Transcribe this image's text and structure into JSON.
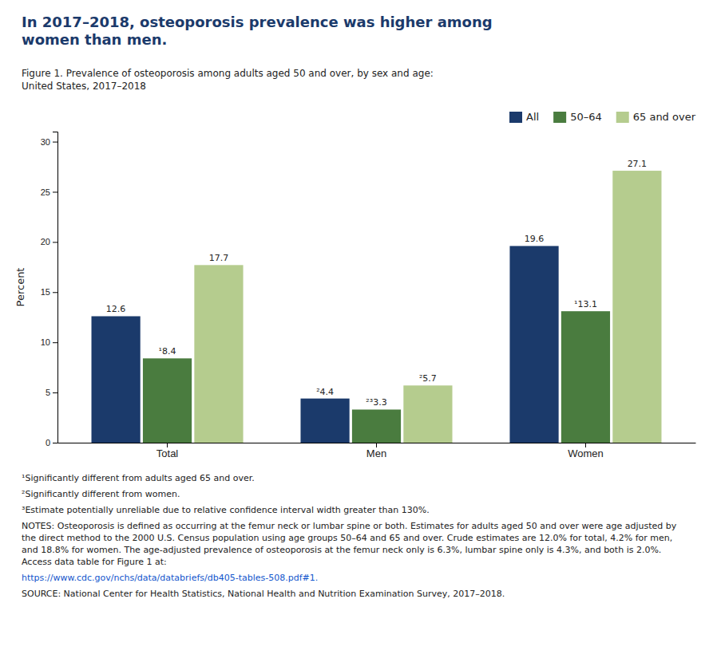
{
  "chart_data": {
    "type": "bar",
    "title": [
      "In 2017–2018, osteoporosis prevalence was higher among",
      "women than men."
    ],
    "subtitle": [
      "Figure 1. Prevalence of osteoporosis among adults aged 50 and over, by sex and age:",
      "United States, 2017–2018"
    ],
    "categories": [
      "Total",
      "Men",
      "Women"
    ],
    "series": [
      {
        "name": "All",
        "color": "#1b3a6b",
        "values": [
          12.6,
          4.4,
          19.6
        ],
        "value_labels": [
          "12.6",
          "²4.4",
          "19.6"
        ]
      },
      {
        "name": "50–64",
        "color": "#4a7c3f",
        "values": [
          8.4,
          3.3,
          13.1
        ],
        "value_labels": [
          "¹8.4",
          "²³3.3",
          "¹13.1"
        ]
      },
      {
        "name": "65 and over",
        "color": "#b5cc8e",
        "values": [
          17.7,
          5.7,
          27.1
        ],
        "value_labels": [
          "17.7",
          "²5.7",
          "27.1"
        ]
      }
    ],
    "ylabel": "Percent",
    "ylim": [
      0,
      31
    ],
    "yticks": [
      0,
      5,
      10,
      15,
      20,
      25,
      30
    ],
    "grid": false,
    "legend": "upper right",
    "data_labels": true,
    "annotations": [
      "¹Significantly different from adults aged 65 and over.",
      "²Significantly different from women.",
      "³Estimate potentially unreliable due to relative confidence interval width greater than 130%.",
      "NOTES: Osteoporosis is defined as occurring at the femur neck or lumbar spine or both. Estimates for adults aged 50 and over were age adjusted by the direct method to the 2000 U.S. Census population using age groups 50–64 and 65 and over. Crude estimates are 12.0% for total, 4.2% for men, and 18.8% for women. The age-adjusted prevalence of osteoporosis at the femur neck only is 6.3%, lumbar spine only is 4.3%, and both is 2.0%. Access data table for Figure 1 at: ",
      "https://www.cdc.gov/nchs/data/databriefs/db405-tables-508.pdf#1.",
      "SOURCE: National Center for Health Statistics, National Health and Nutrition Examination Survey, 2017–2018."
    ]
  }
}
